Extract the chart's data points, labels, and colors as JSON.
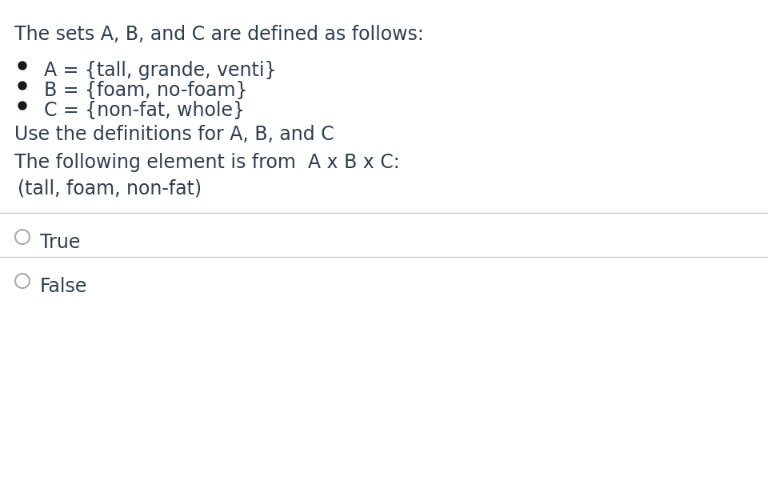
{
  "background_color": "#ffffff",
  "text_color": "#2c3e50",
  "title_line": "The sets A, B, and C are defined as follows:",
  "bullet_lines": [
    "A = {tall, grande, venti}",
    "B = {foam, no-foam}",
    "C = {non-fat, whole}"
  ],
  "instruction_line": "Use the definitions for A, B, and C",
  "question_line": "The following element is from  A x B x C:",
  "element_line": "(tall, foam, non-fat)",
  "options": [
    "True",
    "False"
  ],
  "font_size_main": 17,
  "font_size_bullet": 17,
  "font_size_option": 17,
  "text_color_dark": "#2d3e50",
  "line_color": "#cccccc",
  "bullet_color": "#1a1a1a",
  "radio_color": "#aaaaaa"
}
